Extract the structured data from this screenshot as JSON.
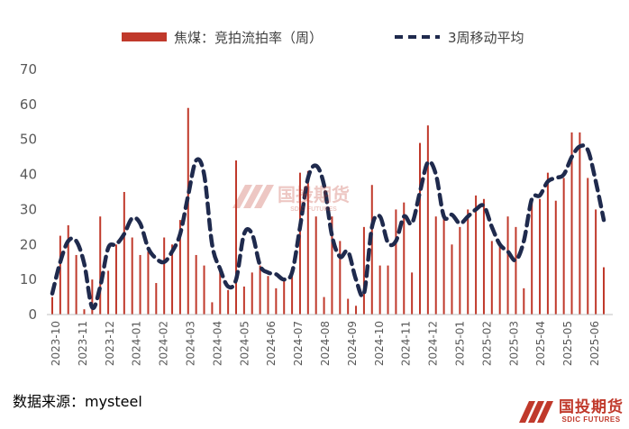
{
  "chart_data": {
    "type": "bar+line",
    "title": "",
    "xlabel": "",
    "ylabel": "",
    "ylim": [
      0,
      70
    ],
    "yticks": [
      "0",
      "10",
      "20",
      "30",
      "40",
      "50",
      "60",
      "70"
    ],
    "xticks": [
      "2023-10",
      "2023-11",
      "2023-12",
      "2024-01",
      "2024-02",
      "2024-03",
      "2024-04",
      "2024-05",
      "2024-06",
      "2024-07",
      "2024-08",
      "2024-09",
      "2024-10",
      "2024-11",
      "2024-12",
      "2025-01",
      "2025-02",
      "2025-03",
      "2025-04",
      "2025-05",
      "2025-06"
    ],
    "grid": false,
    "legend_position": "top",
    "series": [
      {
        "name": "焦煤：竞拍流拍率（周）",
        "type": "bar",
        "color": "#c0392b",
        "values": [
          5,
          22.5,
          25.5,
          17,
          1.5,
          10,
          28,
          12.5,
          20,
          35,
          22,
          17,
          18,
          9,
          22,
          20,
          27,
          59,
          17,
          14,
          3.5,
          12,
          7,
          44,
          8,
          12,
          14,
          11,
          7.5,
          10,
          13,
          40.5,
          41,
          28,
          5,
          28,
          21,
          4.5,
          2.5,
          25,
          37,
          14,
          14,
          30,
          32,
          12,
          49,
          54,
          28,
          29,
          20,
          25,
          30,
          34,
          33,
          21,
          20,
          28,
          25,
          7.5,
          32.5,
          33,
          40.5,
          32.5,
          39,
          52,
          52,
          39,
          30,
          13.5
        ]
      },
      {
        "name": "3周移动平均",
        "type": "line",
        "color": "#1f2a4d",
        "dashed": true,
        "values": [
          6,
          15,
          21,
          21,
          14.5,
          2,
          8,
          19,
          20,
          23,
          27.5,
          26,
          19,
          16,
          15,
          18,
          23,
          34,
          44,
          40,
          20,
          13,
          8,
          10,
          23,
          23,
          14,
          12,
          11.5,
          10,
          12,
          25,
          39,
          42.5,
          37,
          22.5,
          16.5,
          18,
          10,
          6,
          25,
          28,
          20.5,
          21,
          28,
          26,
          35,
          43.5,
          40,
          28,
          28.5,
          26,
          28,
          30,
          31,
          25,
          20,
          18,
          15.5,
          21,
          33,
          34,
          38,
          39,
          40,
          45,
          48,
          47,
          38,
          27
        ]
      }
    ]
  },
  "source_label": "数据来源：mysteel",
  "logo": {
    "cn": "国投期货",
    "en": "SDIC FUTURES"
  },
  "watermark": {
    "cn": "国投期货",
    "en": "SDIC FUTURES"
  }
}
